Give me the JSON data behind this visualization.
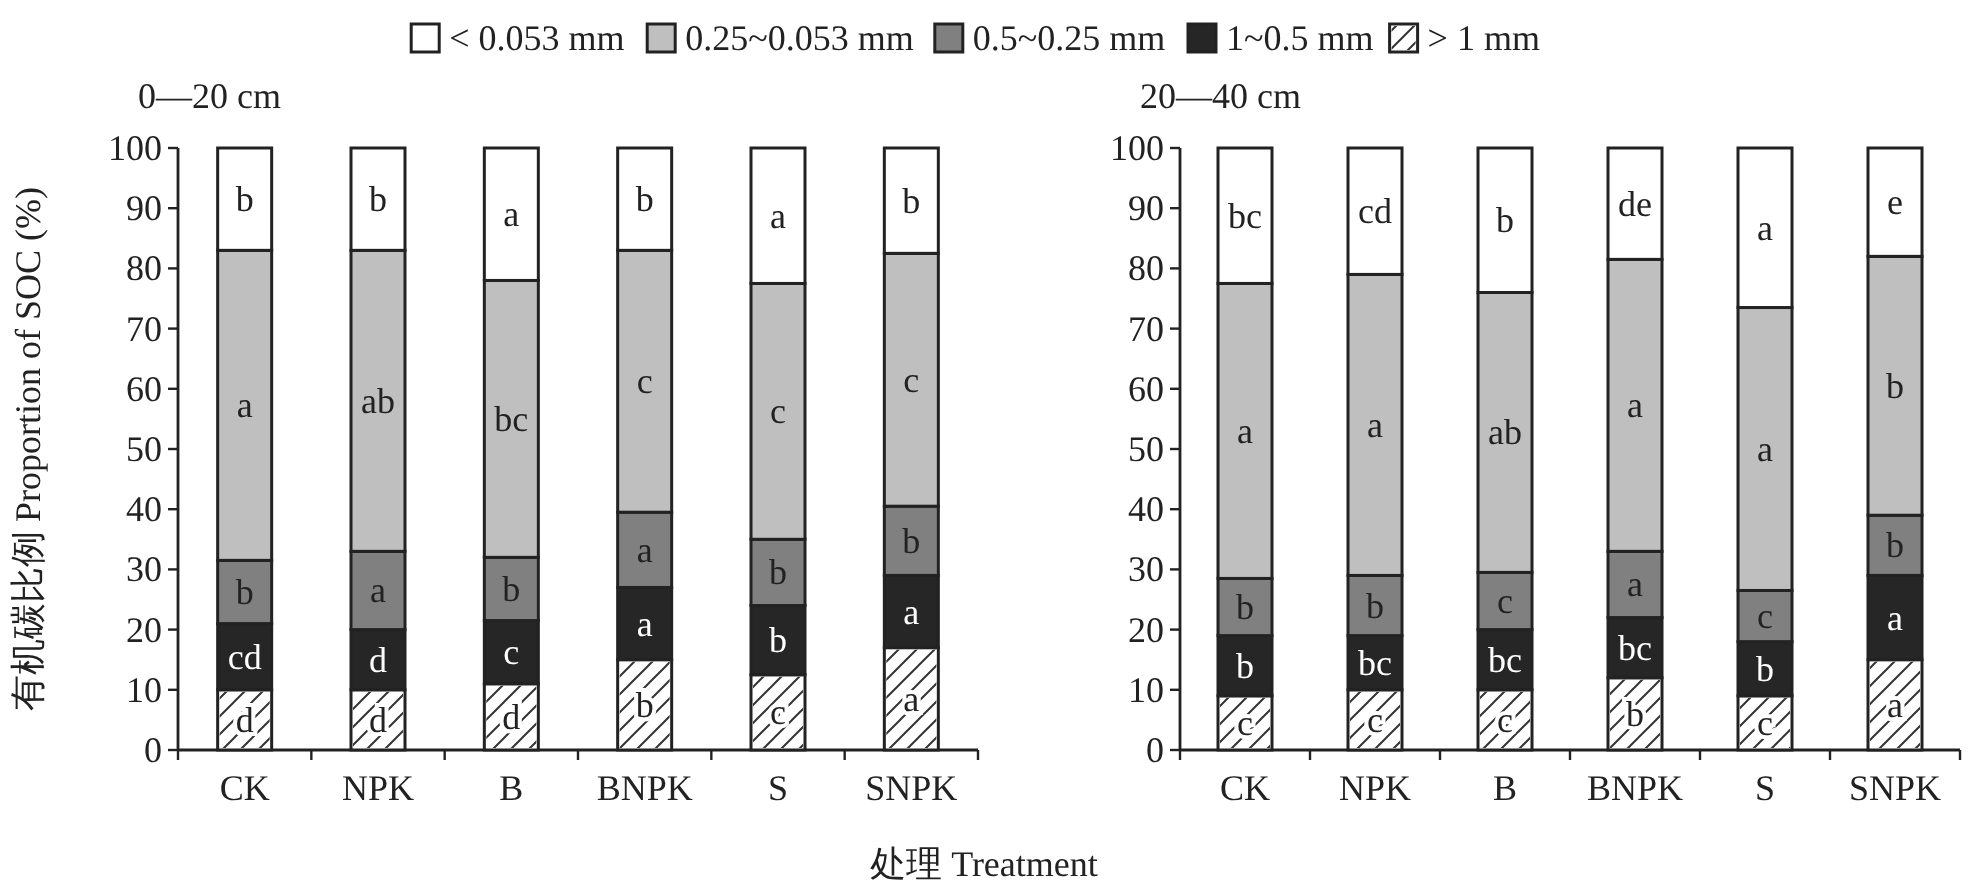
{
  "chart_data": [
    {
      "type": "bar",
      "title": "0—20 cm",
      "ylabel": "有机碳比例 Proportion of SOC (%)",
      "xlabel": "处理 Treatment",
      "stacked": true,
      "legend": "top",
      "categories": [
        "CK",
        "NPK",
        "B",
        "BNPK",
        "S",
        "SNPK"
      ],
      "ylim": [
        0,
        100
      ],
      "yticks": [
        0,
        10,
        20,
        30,
        40,
        50,
        60,
        70,
        80,
        90,
        100
      ],
      "series": [
        {
          "name": "> 1 mm",
          "color": "#ffffff",
          "values": [
            10,
            10,
            11,
            15,
            12.5,
            17
          ],
          "value_labels": [
            "d",
            "d",
            "d",
            "b",
            "c",
            "a"
          ]
        },
        {
          "name": "1~0.5 mm",
          "color": "#262626",
          "values": [
            11,
            10,
            10.5,
            12,
            11.5,
            12
          ],
          "value_labels": [
            "cd",
            "d",
            "c",
            "a",
            "b",
            "a"
          ]
        },
        {
          "name": "0.5~0.25 mm",
          "color": "#808080",
          "values": [
            10.5,
            13,
            10.5,
            12.5,
            11,
            11.5
          ],
          "value_labels": [
            "b",
            "a",
            "b",
            "a",
            "b",
            "b"
          ]
        },
        {
          "name": "0.25~0.053 mm",
          "color": "#bfbfbf",
          "values": [
            51.5,
            50,
            46,
            43.5,
            42.5,
            42
          ],
          "value_labels": [
            "a",
            "ab",
            "bc",
            "c",
            "c",
            "c"
          ]
        },
        {
          "name": "< 0.053 mm",
          "color": "#ffffff",
          "values": [
            17,
            17,
            22,
            17,
            22.5,
            17.5
          ],
          "value_labels": [
            "b",
            "b",
            "a",
            "b",
            "a",
            "b"
          ]
        }
      ]
    },
    {
      "type": "bar",
      "title": "20—40 cm",
      "stacked": true,
      "categories": [
        "CK",
        "NPK",
        "B",
        "BNPK",
        "S",
        "SNPK"
      ],
      "ylim": [
        0,
        100
      ],
      "yticks": [
        0,
        10,
        20,
        30,
        40,
        50,
        60,
        70,
        80,
        90,
        100
      ],
      "series": [
        {
          "color": "#ffffff",
          "values": [
            9,
            10,
            10,
            12,
            9,
            15
          ],
          "value_labels": [
            "c",
            "c",
            "c",
            "b",
            "c",
            "a"
          ]
        },
        {
          "color": "#262626",
          "values": [
            10,
            9,
            10,
            10,
            9,
            14
          ],
          "value_labels": [
            "b",
            "bc",
            "bc",
            "bc",
            "b",
            "a"
          ]
        },
        {
          "color": "#808080",
          "values": [
            9.5,
            10,
            9.5,
            11,
            8.5,
            10
          ],
          "value_labels": [
            "b",
            "b",
            "c",
            "a",
            "c",
            "b"
          ]
        },
        {
          "color": "#bfbfbf",
          "values": [
            49,
            50,
            46.5,
            48.5,
            47,
            43
          ],
          "value_labels": [
            "a",
            "a",
            "ab",
            "a",
            "a",
            "b"
          ]
        },
        {
          "color": "#ffffff",
          "values": [
            22.5,
            21,
            24,
            18.5,
            26.5,
            18
          ],
          "value_labels": [
            "bc",
            "cd",
            "b",
            "de",
            "a",
            "e"
          ]
        }
      ]
    }
  ]
}
